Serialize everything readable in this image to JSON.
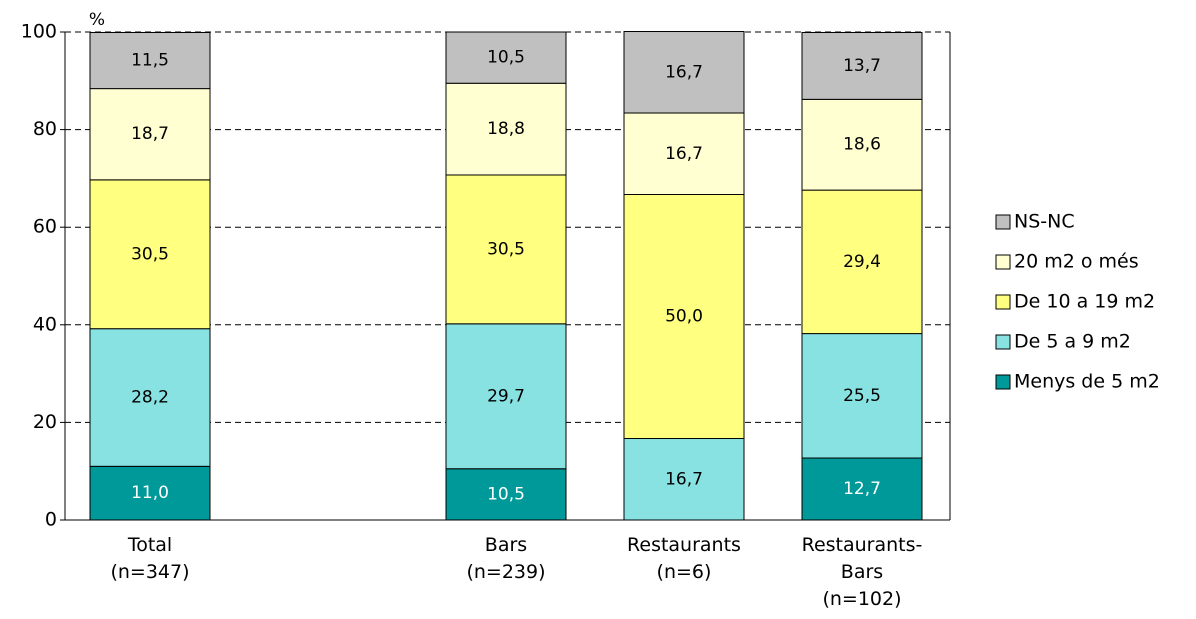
{
  "chart_data": {
    "type": "stacked-bar",
    "y_label": "%",
    "categories": [
      "Total\n(n=347)",
      null,
      "Bars\n(n=239)",
      "Restaurants\n(n=6)",
      "Restaurants-\nBars\n(n=102)"
    ],
    "series": [
      {
        "name": "Menys de 5 m2",
        "color": "#009999",
        "values": [
          11.0,
          null,
          10.5,
          null,
          12.7
        ],
        "value_labels": [
          "11,0",
          null,
          "10,5",
          null,
          "12,7"
        ]
      },
      {
        "name": "De 5 a 9 m2",
        "color": "#88e2e2",
        "values": [
          28.2,
          null,
          29.7,
          16.7,
          25.5
        ],
        "value_labels": [
          "28,2",
          null,
          "29,7",
          "16,7",
          "25,5"
        ]
      },
      {
        "name": "De 10 a 19 m2",
        "color": "#ffff80",
        "values": [
          30.5,
          null,
          30.5,
          50.0,
          29.4
        ],
        "value_labels": [
          "30,5",
          null,
          "30,5",
          "50,0",
          "29,4"
        ]
      },
      {
        "name": "20 m2 o més",
        "color": "#ffffd2",
        "values": [
          18.7,
          null,
          18.8,
          16.7,
          18.6
        ],
        "value_labels": [
          "18,7",
          null,
          "18,8",
          "16,7",
          "18,6"
        ]
      },
      {
        "name": "NS-NC",
        "color": "#c0c0c0",
        "values": [
          11.5,
          null,
          10.5,
          16.7,
          13.7
        ],
        "value_labels": [
          "11,5",
          null,
          "10,5",
          "16,7",
          "13,7"
        ]
      }
    ],
    "ylim": [
      0,
      100
    ],
    "yticks": [
      0,
      20,
      40,
      60,
      80,
      100
    ],
    "grid": true,
    "legend": "right"
  }
}
